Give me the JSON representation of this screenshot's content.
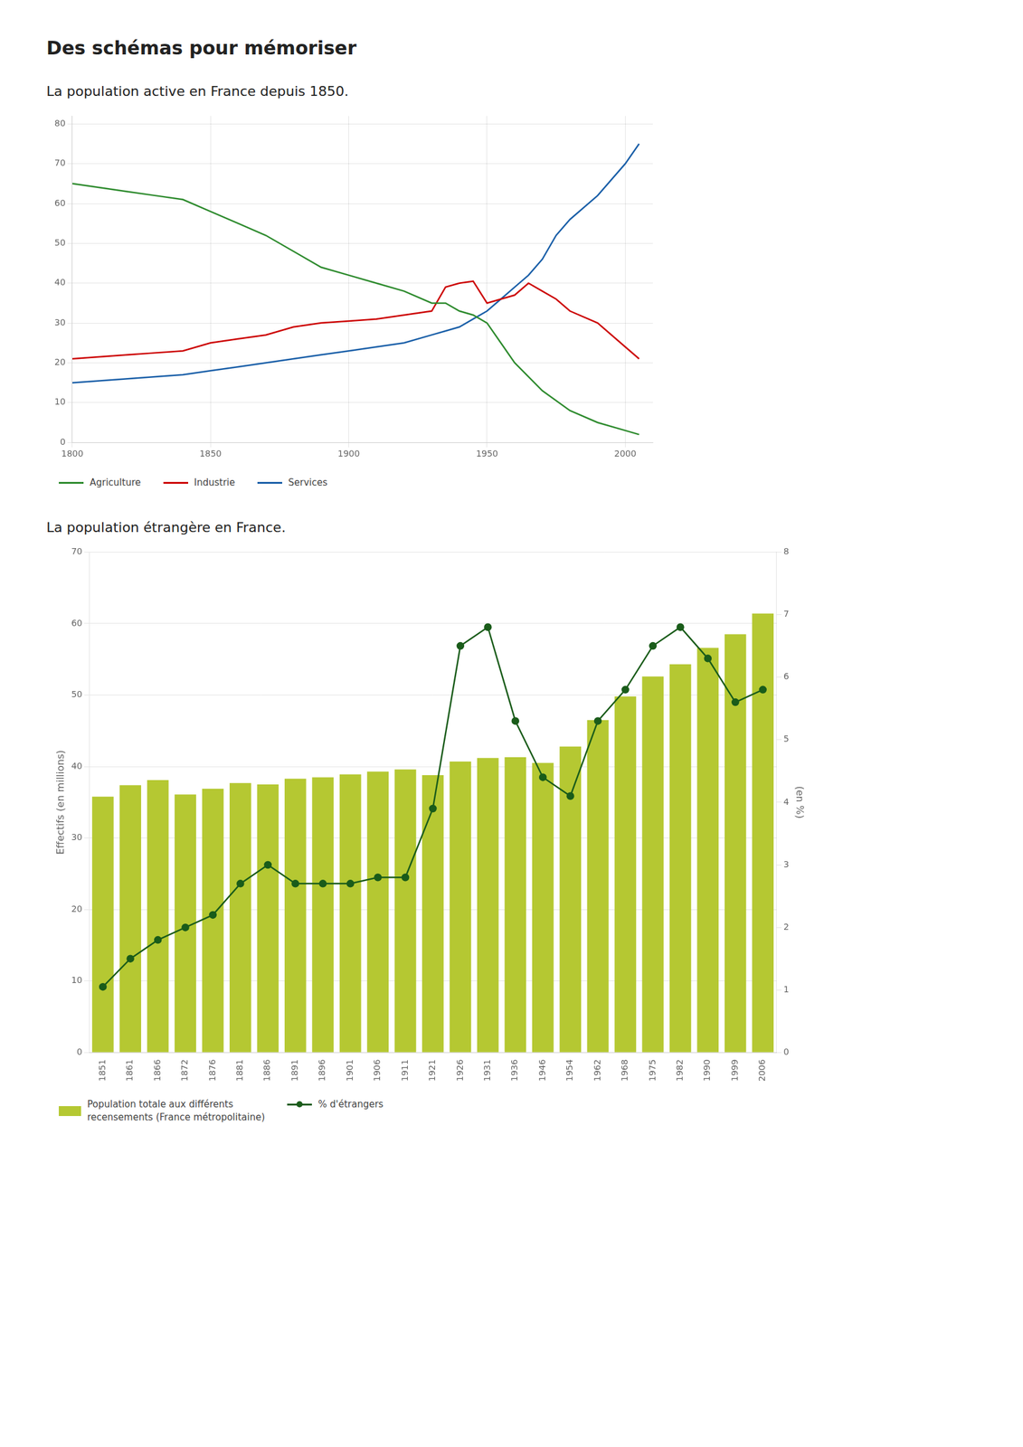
{
  "title": "Des schémas pour mémoriser ",
  "chart_data": [
    {
      "type": "line",
      "subtitle": " La population active en France depuis 1850.",
      "series": [
        {
          "name": "Agriculture",
          "color": "#2e8b2e",
          "x": [
            1800,
            1810,
            1820,
            1830,
            1840,
            1850,
            1860,
            1870,
            1880,
            1890,
            1900,
            1910,
            1920,
            1930,
            1935,
            1940,
            1945,
            1950,
            1955,
            1960,
            1970,
            1980,
            1990,
            2000,
            2005
          ],
          "values": [
            65,
            64,
            63,
            62,
            61,
            58,
            55,
            52,
            48,
            44,
            42,
            40,
            38,
            35,
            35,
            33,
            32,
            30,
            25,
            20,
            13,
            8,
            5,
            3,
            2
          ]
        },
        {
          "name": "Industrie",
          "color": "#cc0000",
          "x": [
            1800,
            1810,
            1820,
            1830,
            1840,
            1850,
            1860,
            1870,
            1880,
            1890,
            1900,
            1910,
            1920,
            1930,
            1935,
            1940,
            1945,
            1950,
            1955,
            1960,
            1965,
            1970,
            1975,
            1980,
            1990,
            2000,
            2005
          ],
          "values": [
            21,
            21.5,
            22,
            22.5,
            23,
            25,
            26,
            27,
            29,
            30,
            30.5,
            31,
            32,
            33,
            39,
            40,
            40.5,
            35,
            36,
            37,
            40,
            38,
            36,
            33,
            30,
            24,
            21
          ]
        },
        {
          "name": "Services",
          "color": "#1a5fa8",
          "x": [
            1800,
            1810,
            1820,
            1830,
            1840,
            1850,
            1860,
            1870,
            1880,
            1890,
            1900,
            1910,
            1920,
            1930,
            1935,
            1940,
            1945,
            1950,
            1955,
            1960,
            1965,
            1970,
            1975,
            1980,
            1990,
            2000,
            2005
          ],
          "values": [
            15,
            15.5,
            16,
            16.5,
            17,
            18,
            19,
            20,
            21,
            22,
            23,
            24,
            25,
            27,
            28,
            29,
            31,
            33,
            36,
            39,
            42,
            46,
            52,
            56,
            62,
            70,
            75
          ]
        }
      ],
      "xlim": [
        1800,
        2010
      ],
      "xticks": [
        1800,
        1850,
        1900,
        1950,
        2000
      ],
      "ylim": [
        0,
        82
      ],
      "yticks": [
        0,
        10,
        20,
        30,
        40,
        50,
        60,
        70,
        80
      ],
      "grid": true,
      "legend": "bottom"
    },
    {
      "type": "bar",
      "subtitle": " La population étrangère en France.",
      "ylabel": "Effectifs (en millions)",
      "y2label": "(en %)",
      "categories": [
        "1851",
        "1861",
        "1866",
        "1872",
        "1876",
        "1881",
        "1886",
        "1891",
        "1896",
        "1901",
        "1906",
        "1911",
        "1921",
        "1926",
        "1931",
        "1936",
        "1946",
        "1954",
        "1962",
        "1968",
        "1975",
        "1982",
        "1990",
        "1999",
        "2006"
      ],
      "series": [
        {
          "name": "Population totale aux différents\nrecensements (France métropolitaine)",
          "type": "bar",
          "color": "#b5c832",
          "values": [
            35.8,
            37.4,
            38.1,
            36.1,
            36.9,
            37.7,
            37.5,
            38.3,
            38.5,
            38.9,
            39.3,
            39.6,
            38.8,
            40.7,
            41.2,
            41.3,
            40.5,
            42.8,
            46.5,
            49.8,
            52.6,
            54.3,
            56.6,
            58.5,
            61.4
          ]
        },
        {
          "name": "% d'étrangers",
          "type": "line",
          "color": "#1a5c1a",
          "marker": "circle",
          "axis": "y2",
          "values": [
            1.05,
            1.5,
            1.8,
            2.0,
            2.2,
            2.7,
            3.0,
            2.7,
            2.7,
            2.7,
            2.8,
            2.8,
            3.9,
            6.5,
            6.8,
            5.3,
            4.4,
            4.1,
            5.3,
            5.8,
            6.5,
            6.8,
            6.3,
            5.6,
            5.8
          ]
        }
      ],
      "ylim": [
        0,
        70
      ],
      "yticks": [
        0,
        10,
        20,
        30,
        40,
        50,
        60,
        70
      ],
      "y2lim": [
        0,
        8
      ],
      "y2ticks": [
        0,
        1,
        2,
        3,
        4,
        5,
        6,
        7,
        8
      ],
      "grid": "y",
      "legend": "bottom"
    }
  ]
}
